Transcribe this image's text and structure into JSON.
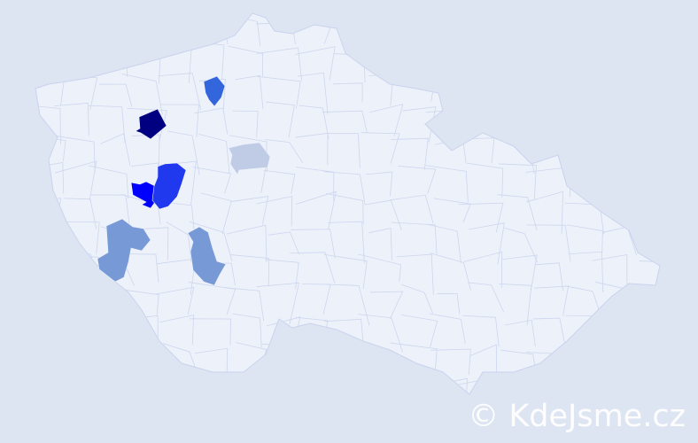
{
  "map": {
    "background_color": "#dde5f2",
    "land_color": "#edf1fa",
    "border_color": "#c9d3ee",
    "highlighted_regions": [
      {
        "color": "#000080"
      },
      {
        "color": "#3366dd"
      },
      {
        "color": "#c0cce6"
      },
      {
        "color": "#0000ff"
      },
      {
        "color": "#2038ee"
      },
      {
        "color": "#7799d6"
      },
      {
        "color": "#7799d6"
      }
    ]
  },
  "watermark": {
    "text": "© KdeJsme.cz"
  }
}
